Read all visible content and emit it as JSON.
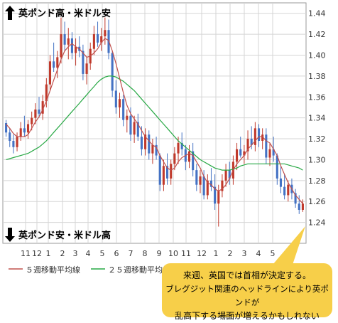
{
  "labels": {
    "top_label": "英ポンド高・米ドル安",
    "bottom_label": "英ポンド安・米ドル高"
  },
  "legend": {
    "ma5": "５週移動平均線",
    "ma25": "２５週移動平均線"
  },
  "bubble": {
    "line1": "来週、英国では首相が決定する。",
    "line2": "ブレグジット関連のヘッドラインにより英ポンドが",
    "line3": "乱高下する場面が増えるかもしれない"
  },
  "colors": {
    "up": "#c0392b",
    "down": "#4472c4",
    "ma5": "#c0504d",
    "ma25": "#27a844",
    "grid": "#d5d5d5",
    "bubble": "#f7cf49"
  },
  "chart_data": {
    "type": "candlestick",
    "ylim": [
      1.22,
      1.45
    ],
    "yticks": [
      1.44,
      1.42,
      1.4,
      1.38,
      1.36,
      1.34,
      1.32,
      1.3,
      1.28,
      1.26,
      1.24
    ],
    "xticks": [
      "11",
      "12",
      "1",
      "2",
      "3",
      "4",
      "5",
      "6",
      "7",
      "8",
      "9",
      "10",
      "11",
      "12",
      "1",
      "2",
      "3",
      "4",
      "5"
    ],
    "candles": [
      [
        1.335,
        1.338,
        1.322,
        1.326
      ],
      [
        1.326,
        1.33,
        1.312,
        1.318
      ],
      [
        1.318,
        1.324,
        1.306,
        1.312
      ],
      [
        1.312,
        1.326,
        1.308,
        1.322
      ],
      [
        1.322,
        1.336,
        1.318,
        1.33
      ],
      [
        1.33,
        1.342,
        1.322,
        1.326
      ],
      [
        1.326,
        1.338,
        1.32,
        1.334
      ],
      [
        1.334,
        1.346,
        1.328,
        1.34
      ],
      [
        1.34,
        1.354,
        1.334,
        1.348
      ],
      [
        1.348,
        1.36,
        1.34,
        1.344
      ],
      [
        1.344,
        1.362,
        1.338,
        1.356
      ],
      [
        1.356,
        1.378,
        1.35,
        1.372
      ],
      [
        1.372,
        1.4,
        1.366,
        1.394
      ],
      [
        1.394,
        1.412,
        1.384,
        1.388
      ],
      [
        1.388,
        1.404,
        1.378,
        1.398
      ],
      [
        1.398,
        1.436,
        1.392,
        1.42
      ],
      [
        1.42,
        1.432,
        1.404,
        1.41
      ],
      [
        1.41,
        1.426,
        1.396,
        1.416
      ],
      [
        1.416,
        1.422,
        1.396,
        1.402
      ],
      [
        1.402,
        1.416,
        1.39,
        1.408
      ],
      [
        1.408,
        1.418,
        1.398,
        1.404
      ],
      [
        1.404,
        1.41,
        1.376,
        1.382
      ],
      [
        1.382,
        1.398,
        1.372,
        1.392
      ],
      [
        1.392,
        1.412,
        1.386,
        1.406
      ],
      [
        1.406,
        1.428,
        1.4,
        1.42
      ],
      [
        1.42,
        1.432,
        1.408,
        1.412
      ],
      [
        1.412,
        1.426,
        1.404,
        1.418
      ],
      [
        1.418,
        1.436,
        1.41,
        1.424
      ],
      [
        1.424,
        1.434,
        1.396,
        1.402
      ],
      [
        1.402,
        1.404,
        1.36,
        1.366
      ],
      [
        1.366,
        1.376,
        1.344,
        1.35
      ],
      [
        1.35,
        1.364,
        1.34,
        1.358
      ],
      [
        1.358,
        1.362,
        1.332,
        1.338
      ],
      [
        1.338,
        1.348,
        1.326,
        1.342
      ],
      [
        1.342,
        1.35,
        1.318,
        1.324
      ],
      [
        1.324,
        1.342,
        1.316,
        1.336
      ],
      [
        1.336,
        1.344,
        1.318,
        1.322
      ],
      [
        1.322,
        1.332,
        1.304,
        1.31
      ],
      [
        1.31,
        1.33,
        1.304,
        1.324
      ],
      [
        1.324,
        1.328,
        1.3,
        1.306
      ],
      [
        1.306,
        1.32,
        1.296,
        1.314
      ],
      [
        1.314,
        1.322,
        1.3,
        1.304
      ],
      [
        1.304,
        1.306,
        1.27,
        1.276
      ],
      [
        1.276,
        1.3,
        1.27,
        1.294
      ],
      [
        1.294,
        1.306,
        1.276,
        1.282
      ],
      [
        1.282,
        1.3,
        1.276,
        1.296
      ],
      [
        1.296,
        1.312,
        1.29,
        1.306
      ],
      [
        1.306,
        1.322,
        1.296,
        1.316
      ],
      [
        1.316,
        1.326,
        1.304,
        1.31
      ],
      [
        1.31,
        1.314,
        1.29,
        1.298
      ],
      [
        1.298,
        1.314,
        1.292,
        1.308
      ],
      [
        1.308,
        1.316,
        1.284,
        1.29
      ],
      [
        1.29,
        1.296,
        1.27,
        1.276
      ],
      [
        1.276,
        1.29,
        1.268,
        1.284
      ],
      [
        1.284,
        1.29,
        1.262,
        1.266
      ],
      [
        1.266,
        1.286,
        1.262,
        1.28
      ],
      [
        1.28,
        1.292,
        1.27,
        1.274
      ],
      [
        1.274,
        1.286,
        1.252,
        1.258
      ],
      [
        1.258,
        1.276,
        1.236,
        1.27
      ],
      [
        1.27,
        1.286,
        1.264,
        1.28
      ],
      [
        1.28,
        1.296,
        1.274,
        1.29
      ],
      [
        1.29,
        1.298,
        1.276,
        1.282
      ],
      [
        1.282,
        1.304,
        1.276,
        1.298
      ],
      [
        1.298,
        1.316,
        1.29,
        1.31
      ],
      [
        1.31,
        1.322,
        1.302,
        1.304
      ],
      [
        1.304,
        1.314,
        1.296,
        1.308
      ],
      [
        1.308,
        1.328,
        1.3,
        1.32
      ],
      [
        1.32,
        1.332,
        1.31,
        1.314
      ],
      [
        1.314,
        1.336,
        1.308,
        1.33
      ],
      [
        1.33,
        1.334,
        1.312,
        1.318
      ],
      [
        1.318,
        1.33,
        1.31,
        1.324
      ],
      [
        1.324,
        1.33,
        1.296,
        1.302
      ],
      [
        1.302,
        1.316,
        1.294,
        1.31
      ],
      [
        1.31,
        1.322,
        1.298,
        1.304
      ],
      [
        1.304,
        1.306,
        1.276,
        1.282
      ],
      [
        1.282,
        1.294,
        1.268,
        1.274
      ],
      [
        1.274,
        1.286,
        1.262,
        1.266
      ],
      [
        1.266,
        1.28,
        1.26,
        1.276
      ],
      [
        1.276,
        1.282,
        1.262,
        1.268
      ],
      [
        1.268,
        1.272,
        1.254,
        1.258
      ],
      [
        1.258,
        1.266,
        1.248,
        1.252
      ],
      [
        1.252,
        1.262,
        1.25,
        1.258
      ]
    ],
    "ma5": [
      1.334,
      1.33,
      1.325,
      1.322,
      1.322,
      1.322,
      1.324,
      1.33,
      1.336,
      1.341,
      1.348,
      1.356,
      1.366,
      1.376,
      1.386,
      1.396,
      1.404,
      1.408,
      1.411,
      1.408,
      1.406,
      1.402,
      1.398,
      1.399,
      1.402,
      1.406,
      1.412,
      1.416,
      1.414,
      1.404,
      1.392,
      1.378,
      1.364,
      1.352,
      1.344,
      1.339,
      1.334,
      1.328,
      1.322,
      1.318,
      1.314,
      1.312,
      1.304,
      1.298,
      1.292,
      1.29,
      1.292,
      1.298,
      1.302,
      1.304,
      1.306,
      1.304,
      1.298,
      1.292,
      1.284,
      1.278,
      1.276,
      1.272,
      1.27,
      1.272,
      1.276,
      1.282,
      1.29,
      1.296,
      1.3,
      1.304,
      1.31,
      1.314,
      1.318,
      1.322,
      1.322,
      1.318,
      1.316,
      1.31,
      1.304,
      1.294,
      1.286,
      1.278,
      1.272,
      1.266,
      1.262,
      1.258
    ],
    "ma25": [
      1.3,
      1.301,
      1.302,
      1.303,
      1.304,
      1.305,
      1.306,
      1.308,
      1.31,
      1.312,
      1.315,
      1.318,
      1.322,
      1.326,
      1.33,
      1.334,
      1.338,
      1.342,
      1.346,
      1.35,
      1.354,
      1.358,
      1.362,
      1.366,
      1.37,
      1.374,
      1.377,
      1.379,
      1.38,
      1.38,
      1.379,
      1.377,
      1.375,
      1.372,
      1.369,
      1.366,
      1.362,
      1.358,
      1.354,
      1.35,
      1.346,
      1.342,
      1.338,
      1.334,
      1.33,
      1.326,
      1.322,
      1.318,
      1.315,
      1.312,
      1.309,
      1.306,
      1.303,
      1.3,
      1.298,
      1.296,
      1.294,
      1.292,
      1.291,
      1.29,
      1.29,
      1.29,
      1.291,
      1.292,
      1.294,
      1.295,
      1.296,
      1.296,
      1.296,
      1.296,
      1.296,
      1.296,
      1.296,
      1.296,
      1.296,
      1.296,
      1.296,
      1.295,
      1.294,
      1.293,
      1.292,
      1.29
    ]
  }
}
